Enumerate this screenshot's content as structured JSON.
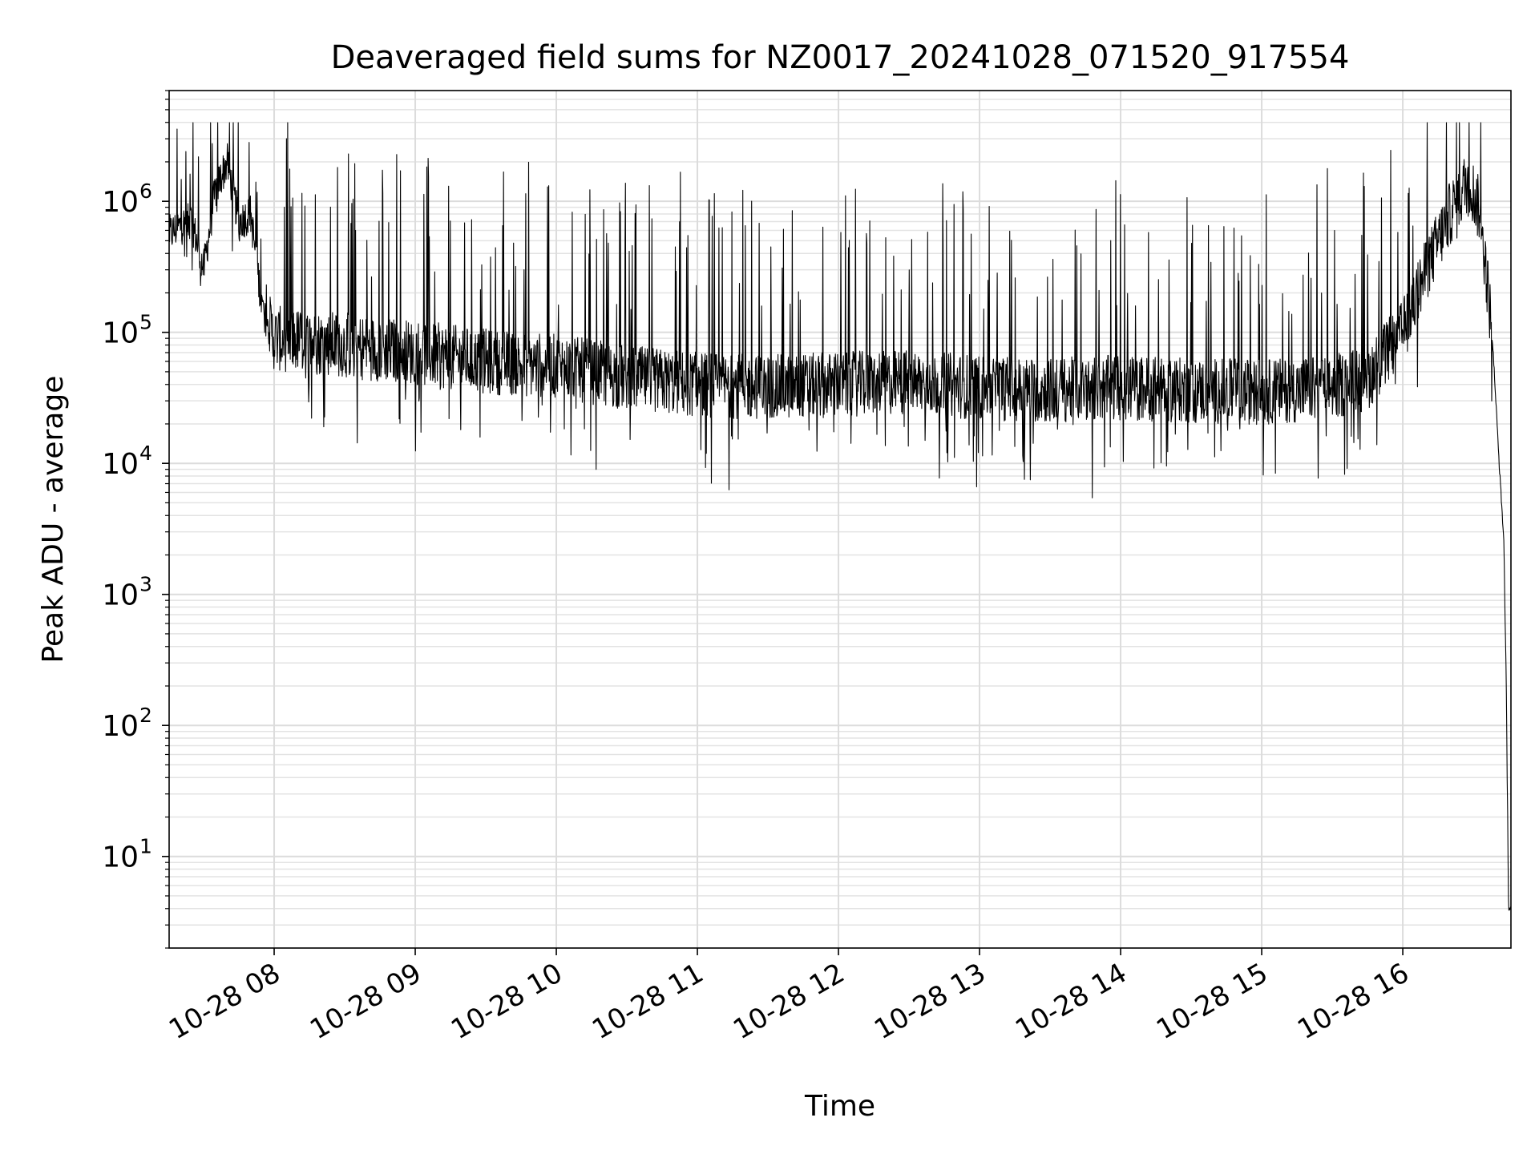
{
  "chart_data": {
    "type": "line",
    "title": "Deaveraged field sums for NZ0017_20241028_071520_917554",
    "xlabel": "Time",
    "ylabel": "Peak ADU - average",
    "yscale": "log",
    "ylim": [
      2,
      7000000.0
    ],
    "xlim": [
      "2024-10-28T07:15:20",
      "2024-10-28T16:46:00"
    ],
    "grid": true,
    "x_ticks": [
      {
        "t": "2024-10-28T08:00",
        "label": "10-28 08"
      },
      {
        "t": "2024-10-28T09:00",
        "label": "10-28 09"
      },
      {
        "t": "2024-10-28T10:00",
        "label": "10-28 10"
      },
      {
        "t": "2024-10-28T11:00",
        "label": "10-28 11"
      },
      {
        "t": "2024-10-28T12:00",
        "label": "10-28 12"
      },
      {
        "t": "2024-10-28T13:00",
        "label": "10-28 13"
      },
      {
        "t": "2024-10-28T14:00",
        "label": "10-28 14"
      },
      {
        "t": "2024-10-28T15:00",
        "label": "10-28 15"
      },
      {
        "t": "2024-10-28T16:00",
        "label": "10-28 16"
      }
    ],
    "y_ticks": [
      {
        "exp": 1,
        "label": "10",
        "sup": "1"
      },
      {
        "exp": 2,
        "label": "10",
        "sup": "2"
      },
      {
        "exp": 3,
        "label": "10",
        "sup": "3"
      },
      {
        "exp": 4,
        "label": "10",
        "sup": "4"
      },
      {
        "exp": 5,
        "label": "10",
        "sup": "5"
      },
      {
        "exp": 6,
        "label": "10",
        "sup": "6"
      }
    ],
    "series": [
      {
        "color": "#000000",
        "points": [
          [
            "2024-10-28T07:15",
            550000
          ],
          [
            "2024-10-28T07:20",
            650000
          ],
          [
            "2024-10-28T07:25",
            700000
          ],
          [
            "2024-10-28T07:30",
            300000
          ],
          [
            "2024-10-28T07:35",
            1200000
          ],
          [
            "2024-10-28T07:40",
            2000000
          ],
          [
            "2024-10-28T07:45",
            700000
          ],
          [
            "2024-10-28T07:50",
            800000
          ],
          [
            "2024-10-28T07:55",
            150000
          ],
          [
            "2024-10-28T08:00",
            90000
          ],
          [
            "2024-10-28T08:30",
            80000
          ],
          [
            "2024-10-28T09:00",
            70000
          ],
          [
            "2024-10-28T09:30",
            60000
          ],
          [
            "2024-10-28T10:00",
            55000
          ],
          [
            "2024-10-28T10:30",
            45000
          ],
          [
            "2024-10-28T11:00",
            40000
          ],
          [
            "2024-10-28T11:30",
            38000
          ],
          [
            "2024-10-28T12:00",
            40000
          ],
          [
            "2024-10-28T12:30",
            42000
          ],
          [
            "2024-10-28T13:00",
            38000
          ],
          [
            "2024-10-28T13:30",
            36000
          ],
          [
            "2024-10-28T14:00",
            38000
          ],
          [
            "2024-10-28T14:30",
            36000
          ],
          [
            "2024-10-28T15:00",
            35000
          ],
          [
            "2024-10-28T15:30",
            38000
          ],
          [
            "2024-10-28T15:45",
            45000
          ],
          [
            "2024-10-28T16:00",
            100000
          ],
          [
            "2024-10-28T16:10",
            300000
          ],
          [
            "2024-10-28T16:20",
            800000
          ],
          [
            "2024-10-28T16:28",
            1500000
          ],
          [
            "2024-10-28T16:33",
            800000
          ],
          [
            "2024-10-28T16:38",
            100000
          ],
          [
            "2024-10-28T16:41",
            10000
          ],
          [
            "2024-10-28T16:43",
            2500
          ],
          [
            "2024-10-28T16:44",
            200
          ],
          [
            "2024-10-28T16:45",
            4
          ]
        ]
      }
    ]
  }
}
